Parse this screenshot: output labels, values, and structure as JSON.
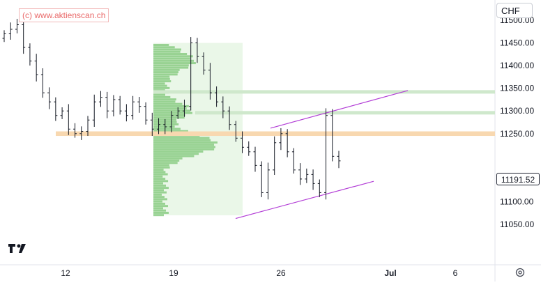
{
  "watermark": "(c) www.aktienscan.ch",
  "currency": "CHF",
  "last_price_label": "11191.52",
  "icons": {
    "settings": "gear-icon",
    "logo": "tradingview-logo"
  },
  "colors": {
    "candle": "#131722",
    "volume_profile": "#7cc576",
    "volume_zone": "#eaf7e8",
    "resistance_zone": "#f8d8b0",
    "channel": "#b23dd6",
    "level": "#cfe8cc"
  },
  "chart_data": {
    "type": "candlestick",
    "xlabel": "",
    "ylabel": "",
    "x_tick_labels": [
      "12",
      "19",
      "26",
      "Jul",
      "6"
    ],
    "y_tick_labels": [
      "11500.00",
      "11450.00",
      "11400.00",
      "11350.00",
      "11300.00",
      "11250.00",
      "11200.00",
      "11150.00",
      "11100.00",
      "11050.00"
    ],
    "ylim": [
      11030,
      11530
    ],
    "series_close": [
      11470,
      11480,
      11490,
      11440,
      11410,
      11380,
      11340,
      11320,
      11290,
      11300,
      11260,
      11250,
      11255,
      11280,
      11320,
      11330,
      11300,
      11325,
      11300,
      11290,
      11320,
      11310,
      11280,
      11260,
      11270,
      11265,
      11290,
      11300,
      11310,
      11450,
      11420,
      11390,
      11340,
      11320,
      11300,
      11270,
      11240,
      11220,
      11210,
      11180,
      11120,
      11170,
      11230,
      11250,
      11210,
      11170,
      11150,
      11160,
      11140,
      11120,
      11290,
      11200,
      11190
    ],
    "last_price": 11191.52,
    "zones": [
      {
        "type": "resistance",
        "from": 11245,
        "to": 11255
      },
      {
        "type": "level",
        "value": 11342
      },
      {
        "type": "level",
        "value": 11296
      }
    ],
    "channel": {
      "upper": {
        "start": 11262,
        "end": 11345
      },
      "lower": {
        "start": 11063,
        "end": 11145
      }
    }
  }
}
